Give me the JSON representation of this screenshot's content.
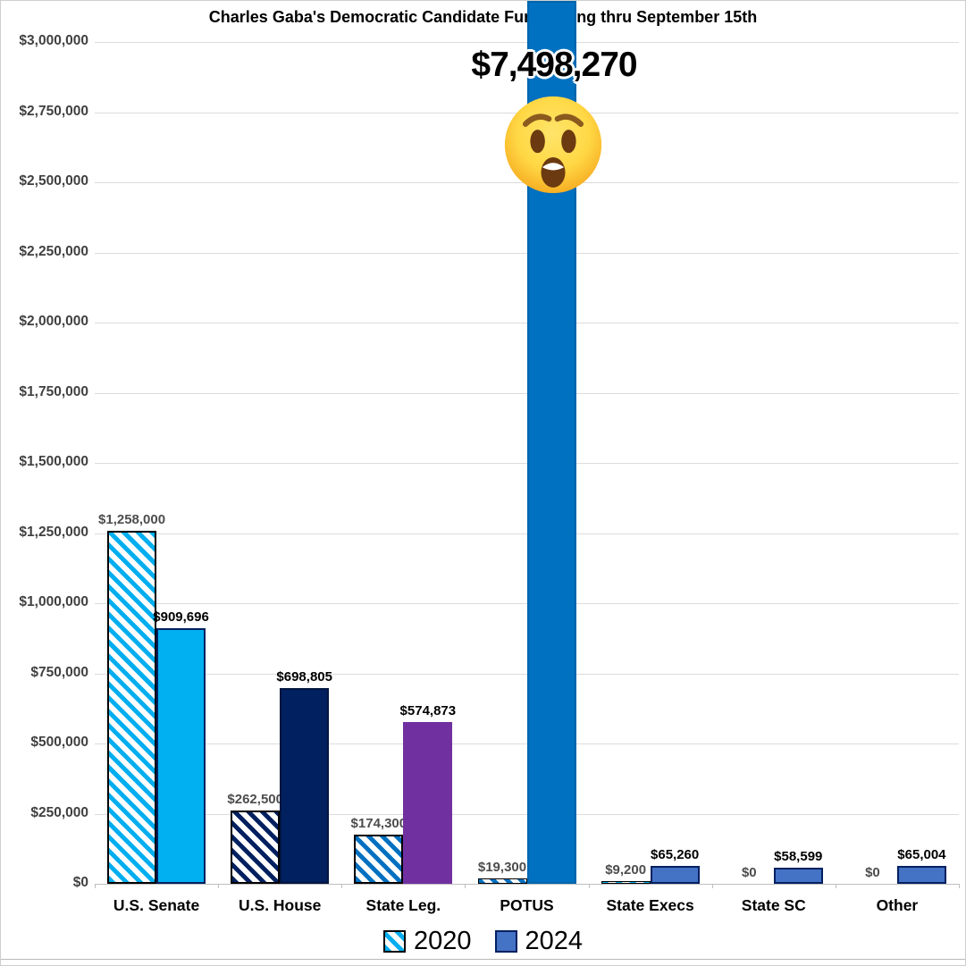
{
  "title": "Charles Gaba's Democratic Candidate Fundraising thru September 15th",
  "annotation": {
    "big_value_label": "$7,498,270",
    "emoji": "astonished-face"
  },
  "chart_data": {
    "type": "bar",
    "title": "Charles Gaba's Democratic Candidate Fundraising thru September 15th",
    "categories": [
      "U.S. Senate",
      "U.S. House",
      "State Leg.",
      "POTUS",
      "State Execs",
      "State SC",
      "Other"
    ],
    "series": [
      {
        "name": "2020",
        "style": "hatched",
        "values": [
          1258000,
          262500,
          174300,
          19300,
          9200,
          0,
          0
        ],
        "labels": [
          "$1,258,000",
          "$262,500",
          "$174,300",
          "$19,300",
          "$9,200",
          "$0",
          "$0"
        ],
        "colors": [
          "#00AEEF",
          "#002060",
          "#0070C0",
          "#0070C0",
          "#00AEEF",
          "#00AEEF",
          "#00AEEF"
        ],
        "border_color": "#000000",
        "label_color": "#4d4d4d"
      },
      {
        "name": "2024",
        "style": "solid",
        "values": [
          909696,
          698805,
          574873,
          7498270,
          65260,
          58599,
          65004
        ],
        "labels": [
          "$909,696",
          "$698,805",
          "$574,873",
          "$7,498,270",
          "$65,260",
          "$58,599",
          "$65,004"
        ],
        "colors": [
          "#00B0F0",
          "#002060",
          "#7030A0",
          "#0070C0",
          "#4472C4",
          "#4472C4",
          "#4472C4"
        ],
        "border_colors": [
          "#002060",
          "#00153f",
          "#7030A0",
          "#0066ae",
          "#002060",
          "#002060",
          "#002060"
        ],
        "label_color": "#000000",
        "big_label_category_index": 3
      }
    ],
    "y_ticks": [
      "$0",
      "$250,000",
      "$500,000",
      "$750,000",
      "$1,000,000",
      "$1,250,000",
      "$1,500,000",
      "$1,750,000",
      "$2,000,000",
      "$2,250,000",
      "$2,500,000",
      "$2,750,000",
      "$3,000,000"
    ],
    "ylim": [
      0,
      3000000
    ],
    "y_tick_step": 250000,
    "grid": true,
    "legend_position": "bottom"
  },
  "legend": {
    "items": [
      {
        "label": "2020",
        "swatch": "hatched",
        "color": "#00AEEF",
        "border": "#000000"
      },
      {
        "label": "2024",
        "swatch": "solid",
        "color": "#4472C4",
        "border": "#002060"
      }
    ]
  }
}
